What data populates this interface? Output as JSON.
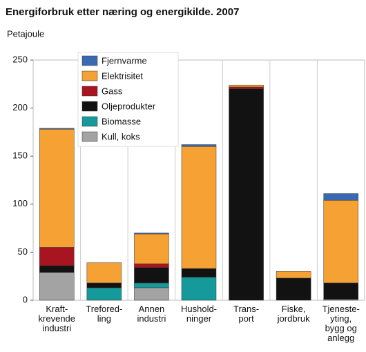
{
  "chart_data": {
    "type": "stacked_bar",
    "title": "Energiforbruk etter næring og energikilde. 2007",
    "y_label": "Petajoule",
    "categories": [
      "Kraft-\nkrevende\nindustri",
      "Trefored-\nling",
      "Annen\nindustri",
      "Hushold-\nninger",
      "Trans-\nport",
      "Fiske,\njordbruk",
      "Tjeneste-\nyting,\nbygg og\nanlegg"
    ],
    "series": [
      {
        "name": "Kull, koks",
        "color": "#a3a3a3",
        "values": [
          29,
          0,
          13,
          0,
          0,
          0,
          1
        ]
      },
      {
        "name": "Biomasse",
        "color": "#16999b",
        "values": [
          0,
          13,
          5,
          24,
          0,
          0,
          0
        ]
      },
      {
        "name": "Oljeprodukter",
        "color": "#121212",
        "values": [
          7,
          5,
          16,
          9,
          220,
          23,
          17
        ]
      },
      {
        "name": "Gass",
        "color": "#a8141f",
        "values": [
          19,
          0,
          4,
          0,
          2,
          0,
          0
        ]
      },
      {
        "name": "Elektrisitet",
        "color": "#f5a133",
        "values": [
          123,
          21,
          31,
          127,
          2,
          7,
          86
        ]
      },
      {
        "name": "Fjernvarme",
        "color": "#3a69b3",
        "values": [
          1,
          0,
          1,
          2,
          0,
          0,
          7
        ]
      }
    ],
    "ylim": [
      0,
      250
    ],
    "yticks": [
      0,
      50,
      100,
      150,
      200,
      250
    ],
    "grid": false
  }
}
